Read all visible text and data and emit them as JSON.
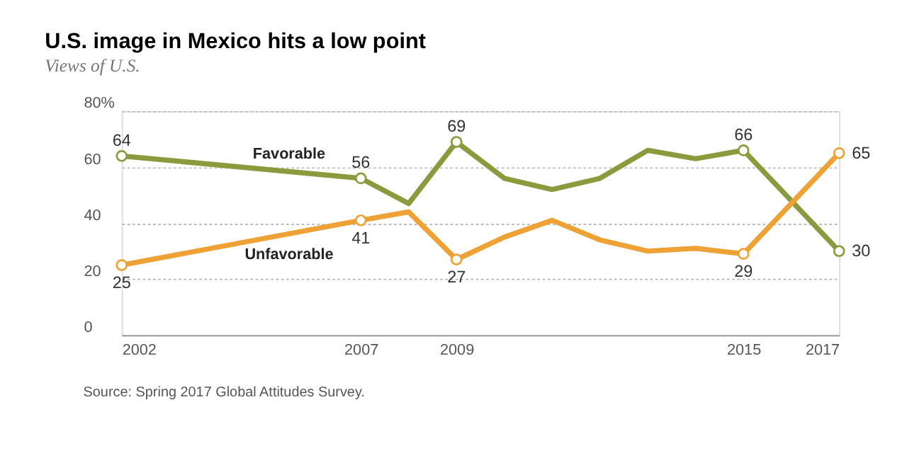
{
  "chart_data": {
    "type": "line",
    "title": "U.S. image in Mexico hits a low point",
    "subtitle": "Views of U.S.",
    "x": [
      2002,
      2007,
      2008,
      2009,
      2010,
      2011,
      2012,
      2013,
      2014,
      2015,
      2017
    ],
    "series": [
      {
        "name": "Favorable",
        "color": "#8a9a3c",
        "values": [
          64,
          56,
          47,
          69,
          56,
          52,
          56,
          66,
          63,
          66,
          30
        ],
        "value_labels": [
          "64",
          "56",
          null,
          "69",
          null,
          null,
          null,
          null,
          null,
          "66",
          "30"
        ]
      },
      {
        "name": "Unfavorable",
        "color": "#eea236",
        "values": [
          25,
          41,
          44,
          27,
          35,
          41,
          34,
          30,
          31,
          29,
          65
        ],
        "value_labels": [
          "25",
          "41",
          null,
          "27",
          null,
          null,
          null,
          null,
          null,
          "29",
          "65"
        ]
      }
    ],
    "xlim": [
      2002,
      2017
    ],
    "xticks": [
      2002,
      2007,
      2009,
      2015,
      2017
    ],
    "ylim": [
      0,
      80
    ],
    "yticks": [
      0,
      20,
      40,
      {
        "value": 80,
        "label": "80%"
      },
      60
    ],
    "grid": "y",
    "line_style": "solid",
    "legend": false,
    "annotations": [
      "Source: Spring 2017 Global Attitudes Survey."
    ]
  }
}
